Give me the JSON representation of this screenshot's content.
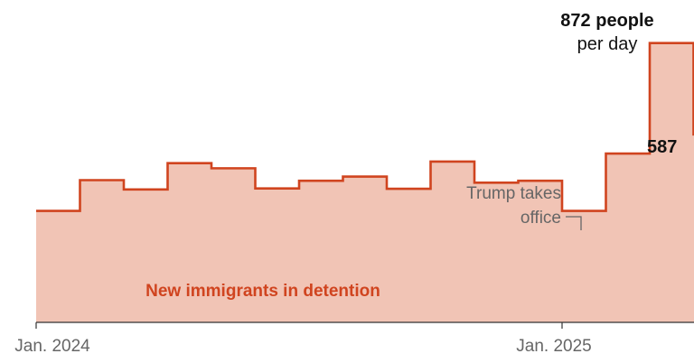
{
  "chart_data": {
    "type": "area",
    "series": [
      {
        "name": "New immigrants in detention",
        "x": [
          "2024-01",
          "2024-02",
          "2024-03",
          "2024-04",
          "2024-05",
          "2024-06",
          "2024-07",
          "2024-08",
          "2024-09",
          "2024-10",
          "2024-11",
          "2024-12",
          "2025-01",
          "2025-02",
          "2025-03",
          "2025-04"
        ],
        "values": [
          348,
          444,
          415,
          497,
          481,
          418,
          442,
          455,
          417,
          502,
          436,
          442,
          348,
          527,
          872,
          587
        ]
      }
    ],
    "x_tick_labels": [
      "Jan. 2024",
      "Jan. 2025"
    ],
    "ylim": [
      0,
      950
    ],
    "annotations": {
      "peak_value": "872 people",
      "peak_unit": "per day",
      "end_value": "587",
      "event_line1": "Trump takes",
      "event_line2": "office"
    },
    "grid": false,
    "colors": {
      "line": "#d0441f",
      "fill": "#f1c4b5",
      "axis": "#333333",
      "text_dark": "#121212",
      "text_gray": "#666666"
    }
  }
}
